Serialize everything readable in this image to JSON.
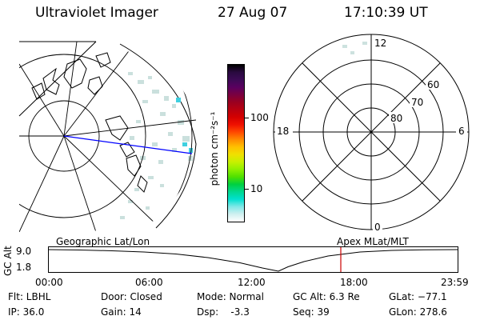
{
  "header": {
    "instrument": "Ultraviolet Imager",
    "date": "27 Aug 07",
    "time": "17:10:39 UT"
  },
  "geo_panel": {
    "label": "Geographic Lat/Lon",
    "map": "geographic-map-with-coastlines"
  },
  "colorbar": {
    "unit_label": "photon cm⁻²s⁻¹",
    "ticks": [
      "100",
      "10"
    ],
    "colors": [
      "#000000",
      "#2a0a40",
      "#3c0a55",
      "#5a0060",
      "#7a0040",
      "#9a0020",
      "#b80010",
      "#d40000",
      "#ef1000",
      "#ff4800",
      "#ff8a00",
      "#ffc000",
      "#f0e000",
      "#c8f000",
      "#90f000",
      "#50e000",
      "#00d040",
      "#00d890",
      "#00e0d0",
      "#80e8e8",
      "#d0f0f0",
      "#ffffff"
    ]
  },
  "polar_panel": {
    "label": "Apex MLat/MLT",
    "mlt_labels": {
      "top": "12",
      "left": "18",
      "right": "6",
      "bottom": "0"
    },
    "lat_labels": [
      "60",
      "70",
      "80"
    ]
  },
  "altitude_plot": {
    "ylabel": "GC Alt",
    "yticks": [
      "9.0",
      "1.8"
    ],
    "time_labels": [
      "00:00",
      "06:00",
      "12:00",
      "18:00",
      "23:59"
    ],
    "marker_time": "17:10:39"
  },
  "status": {
    "flt": "Flt: LBHL",
    "ip": "IP: 36.0",
    "door": "Door: Closed",
    "gain": "Gain: 14",
    "mode": "Mode: Normal",
    "dsp": "Dsp:    -3.3",
    "gc_alt": "GC Alt: 6.3 Re",
    "seq": "Seq: 39",
    "glat": "GLat: −77.1",
    "glon": "GLon: 278.6"
  }
}
